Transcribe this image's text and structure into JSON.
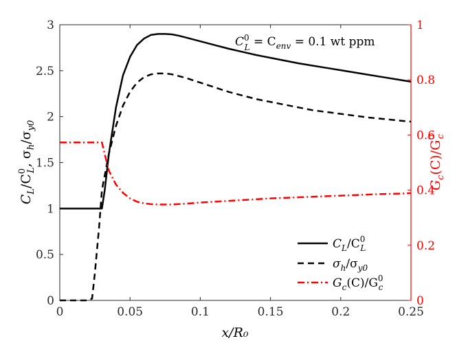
{
  "chart_data": {
    "type": "line",
    "xlabel": "x/R₀",
    "ylabel_left": "Cʟ/C₀ʟ, σₕ/σᵧ₀",
    "ylabel_left_parts": {
      "a": "C",
      "a_sub": "L",
      "b": "/C",
      "b_sup": "0",
      "b_sub": "L",
      "c": ", σ",
      "c_sub": "h",
      "d": "/σ",
      "d_sub": "y0"
    },
    "ylabel_right_parts": {
      "a": "G",
      "a_sub": "c",
      "b": "(C)/G",
      "b_sup": "0",
      "b_sub": "c"
    },
    "xlim": [
      0,
      0.25
    ],
    "ylim_left": [
      0,
      3
    ],
    "ylim_right": [
      0,
      1
    ],
    "x_ticks": [
      0,
      0.05,
      0.1,
      0.15,
      0.2,
      0.25
    ],
    "x_tick_labels": [
      "0",
      "0.05",
      "0.1",
      "0.15",
      "0.2",
      "0.25"
    ],
    "y_left_ticks": [
      0,
      0.5,
      1,
      1.5,
      2,
      2.5,
      3
    ],
    "y_left_tick_labels": [
      "0",
      "0.5",
      "1",
      "1.5",
      "2",
      "2.5",
      "3"
    ],
    "y_right_ticks": [
      0,
      0.2,
      0.4,
      0.6,
      0.8,
      1
    ],
    "y_right_tick_labels": [
      "0",
      "0.2",
      "0.4",
      "0.6",
      "0.8",
      "1"
    ],
    "annotation": {
      "lhs": "C",
      "lhs_sup": "0",
      "lhs_sub": "L",
      "mid": " = C",
      "mid_sub": "env",
      "rhs": " = 0.1 wt ppm"
    },
    "legend_position": "bottom-right",
    "colors": {
      "black": "#000000",
      "red": "#ff0000"
    },
    "series": [
      {
        "name": "CL/CL0",
        "legend": {
          "main": "C",
          "sub": "L",
          "rest": "/C",
          "sup2": "0",
          "sub2": "L"
        },
        "axis": "left",
        "style": "solid",
        "color": "#000000",
        "x": [
          0,
          0.005,
          0.01,
          0.015,
          0.02,
          0.025,
          0.028,
          0.03,
          0.032,
          0.035,
          0.04,
          0.045,
          0.05,
          0.055,
          0.06,
          0.065,
          0.07,
          0.075,
          0.08,
          0.085,
          0.09,
          0.1,
          0.11,
          0.12,
          0.13,
          0.14,
          0.15,
          0.16,
          0.17,
          0.18,
          0.19,
          0.2,
          0.21,
          0.22,
          0.23,
          0.24,
          0.25
        ],
        "y": [
          1,
          1,
          1,
          1,
          1,
          1,
          1,
          1,
          1.2,
          1.6,
          2.1,
          2.45,
          2.65,
          2.78,
          2.85,
          2.89,
          2.9,
          2.9,
          2.895,
          2.88,
          2.86,
          2.82,
          2.78,
          2.74,
          2.705,
          2.67,
          2.64,
          2.61,
          2.58,
          2.555,
          2.53,
          2.505,
          2.48,
          2.455,
          2.43,
          2.405,
          2.38
        ]
      },
      {
        "name": "sigma_h/sigma_y0",
        "legend": {
          "main": "σ",
          "sub": "h",
          "rest": "/σ",
          "sub2": "y0"
        },
        "axis": "left",
        "style": "dashed",
        "color": "#000000",
        "x": [
          0,
          0.01,
          0.02,
          0.023,
          0.025,
          0.028,
          0.03,
          0.035,
          0.04,
          0.045,
          0.05,
          0.055,
          0.06,
          0.065,
          0.07,
          0.075,
          0.08,
          0.09,
          0.1,
          0.11,
          0.12,
          0.13,
          0.14,
          0.15,
          0.16,
          0.17,
          0.18,
          0.19,
          0.2,
          0.21,
          0.22,
          0.23,
          0.24,
          0.25
        ],
        "y": [
          0,
          0,
          0,
          0.02,
          0.3,
          0.8,
          1.2,
          1.6,
          1.9,
          2.12,
          2.27,
          2.37,
          2.43,
          2.46,
          2.47,
          2.47,
          2.46,
          2.42,
          2.37,
          2.32,
          2.27,
          2.23,
          2.19,
          2.16,
          2.13,
          2.1,
          2.07,
          2.05,
          2.03,
          2.01,
          1.99,
          1.975,
          1.96,
          1.945
        ]
      },
      {
        "name": "Gc(C)/Gc0",
        "legend": {
          "main": "G",
          "sub": "c",
          "rest": "(C)/G",
          "sup2": "0",
          "sub2": "c"
        },
        "axis": "right",
        "style": "dashdot",
        "color": "#ff0000",
        "x": [
          0,
          0.01,
          0.02,
          0.025,
          0.028,
          0.03,
          0.032,
          0.035,
          0.04,
          0.045,
          0.05,
          0.055,
          0.06,
          0.065,
          0.07,
          0.075,
          0.08,
          0.09,
          0.1,
          0.11,
          0.12,
          0.13,
          0.14,
          0.15,
          0.16,
          0.17,
          0.18,
          0.19,
          0.2,
          0.21,
          0.22,
          0.23,
          0.24,
          0.25
        ],
        "y": [
          0.573,
          0.573,
          0.573,
          0.573,
          0.573,
          0.573,
          0.53,
          0.47,
          0.42,
          0.39,
          0.37,
          0.358,
          0.352,
          0.349,
          0.348,
          0.348,
          0.348,
          0.351,
          0.355,
          0.358,
          0.361,
          0.364,
          0.367,
          0.37,
          0.372,
          0.374,
          0.376,
          0.378,
          0.38,
          0.382,
          0.384,
          0.386,
          0.387,
          0.389
        ]
      }
    ]
  }
}
